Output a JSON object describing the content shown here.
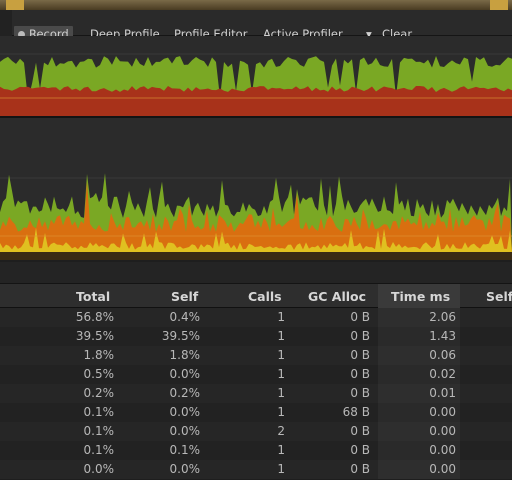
{
  "toolbar": {
    "record_label": "Record",
    "deep_profile_label": "Deep Profile",
    "profile_editor_label": "Profile Editor",
    "active_profiler_label": "Active Profiler",
    "dropdown_arrow": "▾",
    "clear_label": "Clear"
  },
  "colors": {
    "green": "#7aa824",
    "orange": "#d96f10",
    "red": "#a8321a",
    "yellow": "#e0c020",
    "graph_bg": "#2b2b2b"
  },
  "table": {
    "headers": {
      "total": "Total",
      "self": "Self",
      "calls": "Calls",
      "gc_alloc": "GC Alloc",
      "time_ms": "Time ms",
      "self_ms": "Self"
    },
    "rows": [
      {
        "total": "56.8%",
        "self": "0.4%",
        "calls": "1",
        "gc": "0 B",
        "time": "2.06"
      },
      {
        "total": "39.5%",
        "self": "39.5%",
        "calls": "1",
        "gc": "0 B",
        "time": "1.43"
      },
      {
        "total": "1.8%",
        "self": "1.8%",
        "calls": "1",
        "gc": "0 B",
        "time": "0.06"
      },
      {
        "total": "0.5%",
        "self": "0.0%",
        "calls": "1",
        "gc": "0 B",
        "time": "0.02"
      },
      {
        "total": "0.2%",
        "self": "0.2%",
        "calls": "1",
        "gc": "0 B",
        "time": "0.01"
      },
      {
        "total": "0.1%",
        "self": "0.0%",
        "calls": "1",
        "gc": "68 B",
        "time": "0.00"
      },
      {
        "total": "0.1%",
        "self": "0.0%",
        "calls": "2",
        "gc": "0 B",
        "time": "0.00"
      },
      {
        "total": "0.1%",
        "self": "0.1%",
        "calls": "1",
        "gc": "0 B",
        "time": "0.00"
      },
      {
        "total": "0.0%",
        "self": "0.0%",
        "calls": "1",
        "gc": "0 B",
        "time": "0.00"
      }
    ]
  }
}
